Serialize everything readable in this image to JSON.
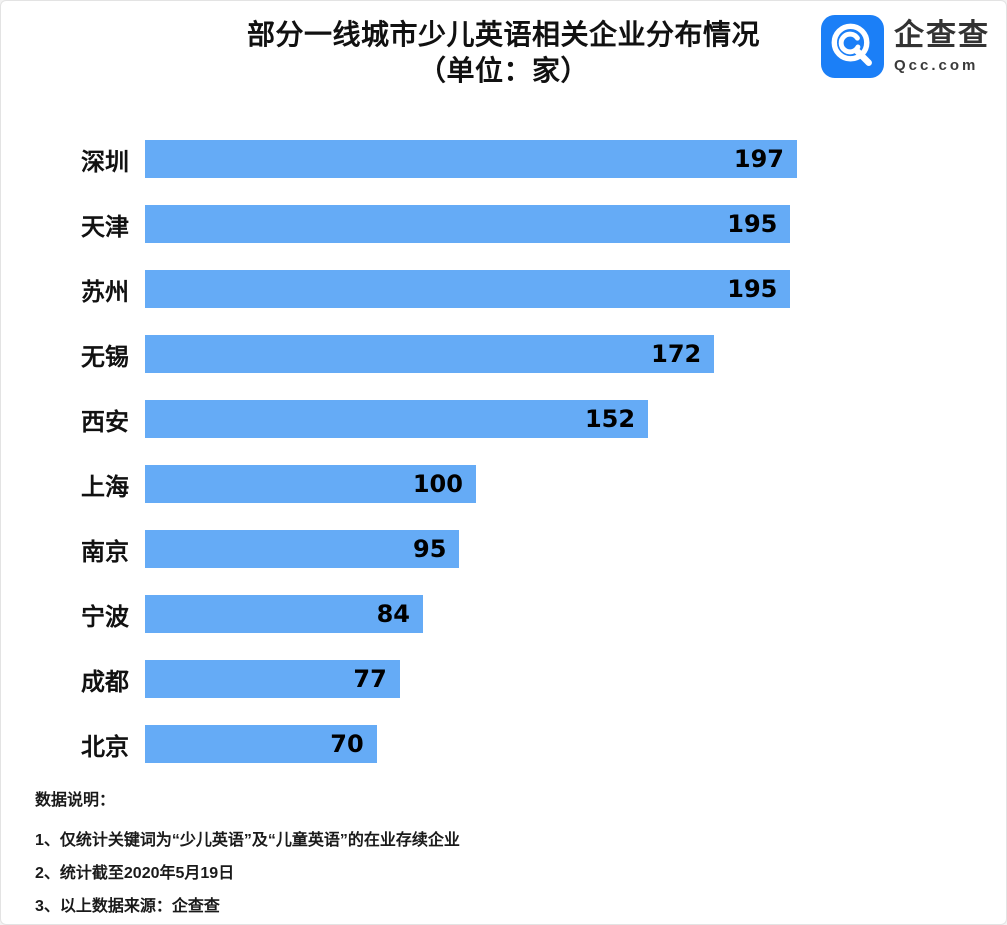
{
  "header": {
    "title_line1": "部分一线城市少儿英语相关企业分布情况",
    "title_line2": "（单位：家）",
    "logo": {
      "name": "企查查",
      "domain": "Qcc.com",
      "badge_color": "#1b7ff7"
    }
  },
  "chart_data": {
    "type": "bar",
    "orientation": "horizontal",
    "title": "部分一线城市少儿英语相关企业分布情况",
    "subtitle": "（单位：家）",
    "unit": "家",
    "categories": [
      "深圳",
      "天津",
      "苏州",
      "无锡",
      "西安",
      "上海",
      "南京",
      "宁波",
      "成都",
      "北京"
    ],
    "values": [
      197,
      195,
      195,
      172,
      152,
      100,
      95,
      84,
      77,
      70
    ],
    "xlim": [
      0,
      197
    ],
    "grid": false,
    "legend": false,
    "value_labels": "inside-end",
    "bar_color": "#65abf6",
    "value_label_color": "#000000"
  },
  "footnotes": {
    "heading": "数据说明：",
    "items": [
      "1、仅统计关键词为“少儿英语”及“儿童英语”的在业存续企业",
      "2、统计截至2020年5月19日",
      "3、以上数据来源：企查查"
    ]
  }
}
